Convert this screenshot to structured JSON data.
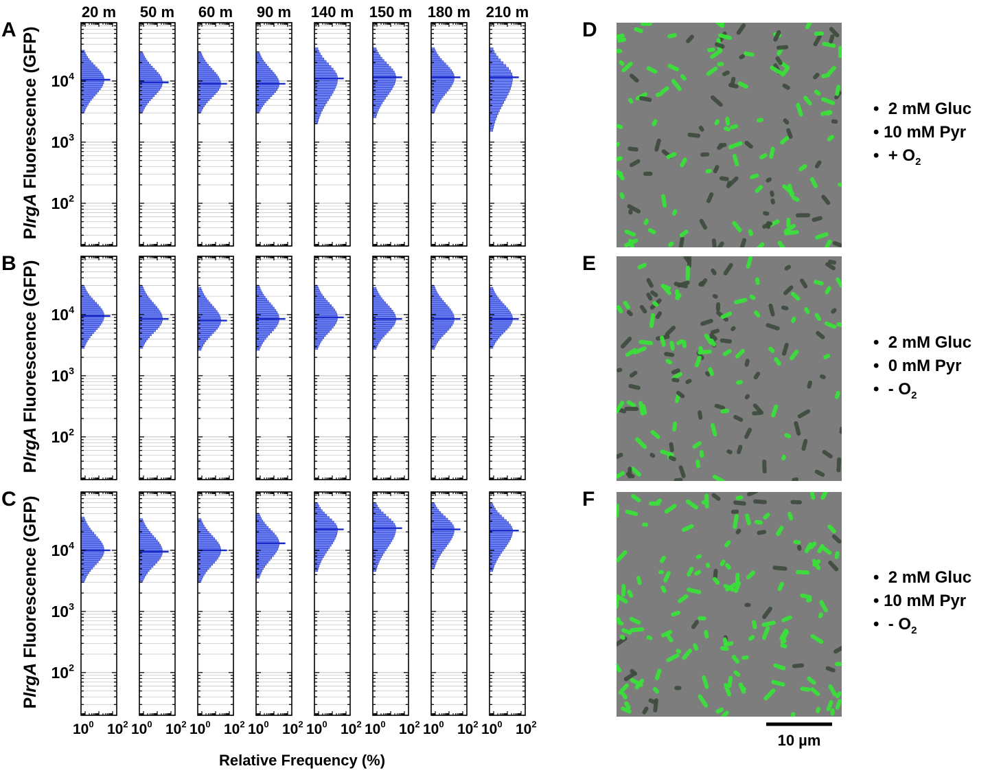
{
  "colors": {
    "histogram_fill": "#6b7ff0",
    "histogram_edge": "#2030c8",
    "median_line": "#1a2bc8",
    "gridline": "#c8c8c8",
    "micrograph_background": "#7d7d7d",
    "cell_gfp": "#3ae03a",
    "cell_dark": "#3c4a3c",
    "scale_bar": "#000000"
  },
  "timepoints": [
    "20 m",
    "50 m",
    "60 m",
    "90 m",
    "140 m",
    "150 m",
    "180 m",
    "210 m"
  ],
  "y_axis_label": {
    "prefix": "P",
    "gene": "lrgA",
    "suffix": " Fluorescence (GFP)"
  },
  "x_axis_label": "Relative Frequency (%)",
  "chart_data": [
    {
      "panel": "A",
      "type": "bar",
      "orientation": "horizontal histogram",
      "y_scale": "log",
      "ylim": [
        20,
        90000
      ],
      "y_ticks": [
        {
          "base": "10",
          "exp": "2",
          "value": 100
        },
        {
          "base": "10",
          "exp": "3",
          "value": 1000
        },
        {
          "base": "10",
          "exp": "4",
          "value": 10000
        }
      ],
      "x_scale": "log",
      "x_ticks": [
        {
          "base": "10",
          "exp": "0",
          "value": 1
        },
        {
          "base": "10",
          "exp": "2",
          "value": 100
        }
      ],
      "grid": true,
      "series": [
        {
          "timepoint": "20 m",
          "median": 10500,
          "low": 3000,
          "high": 32000
        },
        {
          "timepoint": "50 m",
          "median": 9500,
          "low": 3000,
          "high": 30000
        },
        {
          "timepoint": "60 m",
          "median": 9000,
          "low": 3000,
          "high": 30000
        },
        {
          "timepoint": "90 m",
          "median": 9000,
          "low": 3000,
          "high": 30000
        },
        {
          "timepoint": "140 m",
          "median": 11000,
          "low": 2000,
          "high": 35000
        },
        {
          "timepoint": "150 m",
          "median": 11500,
          "low": 2500,
          "high": 35000
        },
        {
          "timepoint": "180 m",
          "median": 11500,
          "low": 3000,
          "high": 35000
        },
        {
          "timepoint": "210 m",
          "median": 11500,
          "low": 1500,
          "high": 35000
        }
      ]
    },
    {
      "panel": "B",
      "type": "bar",
      "orientation": "horizontal histogram",
      "y_scale": "log",
      "ylim": [
        20,
        90000
      ],
      "y_ticks": [
        {
          "base": "10",
          "exp": "2",
          "value": 100
        },
        {
          "base": "10",
          "exp": "3",
          "value": 1000
        },
        {
          "base": "10",
          "exp": "4",
          "value": 10000
        }
      ],
      "x_scale": "log",
      "x_ticks": [
        {
          "base": "10",
          "exp": "0",
          "value": 1
        },
        {
          "base": "10",
          "exp": "2",
          "value": 100
        }
      ],
      "grid": true,
      "series": [
        {
          "timepoint": "20 m",
          "median": 9500,
          "low": 2800,
          "high": 30000
        },
        {
          "timepoint": "50 m",
          "median": 8500,
          "low": 2800,
          "high": 30000
        },
        {
          "timepoint": "60 m",
          "median": 8000,
          "low": 2600,
          "high": 28000
        },
        {
          "timepoint": "90 m",
          "median": 8500,
          "low": 2600,
          "high": 30000
        },
        {
          "timepoint": "140 m",
          "median": 9000,
          "low": 2700,
          "high": 30000
        },
        {
          "timepoint": "150 m",
          "median": 8500,
          "low": 2700,
          "high": 28000
        },
        {
          "timepoint": "180 m",
          "median": 8500,
          "low": 2700,
          "high": 30000
        },
        {
          "timepoint": "210 m",
          "median": 8500,
          "low": 2800,
          "high": 28000
        }
      ]
    },
    {
      "panel": "C",
      "type": "bar",
      "orientation": "horizontal histogram",
      "y_scale": "log",
      "ylim": [
        20,
        90000
      ],
      "y_ticks": [
        {
          "base": "10",
          "exp": "2",
          "value": 100
        },
        {
          "base": "10",
          "exp": "3",
          "value": 1000
        },
        {
          "base": "10",
          "exp": "4",
          "value": 10000
        }
      ],
      "x_scale": "log",
      "x_ticks": [
        {
          "base": "10",
          "exp": "0",
          "value": 1
        },
        {
          "base": "10",
          "exp": "2",
          "value": 100
        }
      ],
      "grid": true,
      "series": [
        {
          "timepoint": "20 m",
          "median": 10000,
          "low": 3000,
          "high": 35000
        },
        {
          "timepoint": "50 m",
          "median": 9500,
          "low": 3000,
          "high": 33000
        },
        {
          "timepoint": "60 m",
          "median": 10000,
          "low": 3000,
          "high": 33000
        },
        {
          "timepoint": "90 m",
          "median": 13000,
          "low": 3500,
          "high": 40000
        },
        {
          "timepoint": "140 m",
          "median": 22000,
          "low": 4500,
          "high": 60000
        },
        {
          "timepoint": "150 m",
          "median": 23000,
          "low": 4500,
          "high": 60000
        },
        {
          "timepoint": "180 m",
          "median": 22000,
          "low": 5000,
          "high": 60000
        },
        {
          "timepoint": "210 m",
          "median": 21000,
          "low": 4500,
          "high": 58000
        }
      ]
    }
  ],
  "micrographs": [
    {
      "panel": "D",
      "gfp_fraction": 0.55,
      "conditions": [
        {
          "bullet": "•",
          "text": " 2 mM Gluc",
          "sub": ""
        },
        {
          "bullet": "•",
          "text": "10 mM Pyr",
          "sub": ""
        },
        {
          "bullet": "•",
          "text": " + O",
          "sub": "2"
        }
      ]
    },
    {
      "panel": "E",
      "gfp_fraction": 0.45,
      "conditions": [
        {
          "bullet": "•",
          "text": " 2 mM Gluc",
          "sub": ""
        },
        {
          "bullet": "•",
          "text": " 0 mM Pyr",
          "sub": ""
        },
        {
          "bullet": "•",
          "text": " - O",
          "sub": "2"
        }
      ]
    },
    {
      "panel": "F",
      "gfp_fraction": 0.8,
      "conditions": [
        {
          "bullet": "•",
          "text": " 2 mM Gluc",
          "sub": ""
        },
        {
          "bullet": "•",
          "text": "10 mM Pyr",
          "sub": ""
        },
        {
          "bullet": "•",
          "text": " - O",
          "sub": "2"
        }
      ]
    }
  ],
  "scale_bar_label": "10 µm"
}
